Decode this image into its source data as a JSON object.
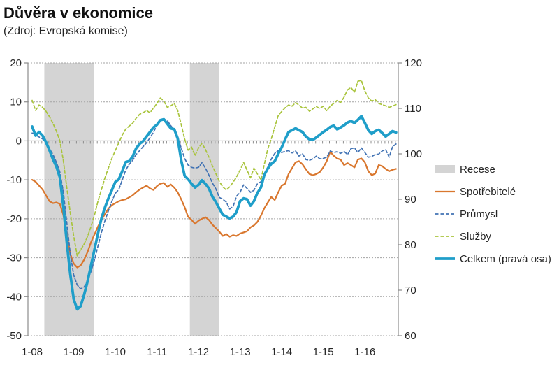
{
  "header": {
    "title": "Důvěra v ekonomice",
    "subtitle": "(Zdroj: Evropská komise)"
  },
  "chart_data": {
    "type": "line",
    "title": "Důvěra v ekonomice",
    "subtitle": "(Zdroj: Evropská komise)",
    "x_start": "1-08",
    "x_end": "10-16",
    "x_tick_labels": [
      "1-08",
      "1-09",
      "1-10",
      "1-11",
      "1-12",
      "1-13",
      "1-14",
      "1-15",
      "1-16"
    ],
    "x_tick_month_indices": [
      0,
      12,
      24,
      36,
      48,
      60,
      72,
      84,
      96
    ],
    "left_axis": {
      "min": -50,
      "max": 20,
      "ticks": [
        20,
        10,
        0,
        -10,
        -20,
        -30,
        -40,
        -50
      ]
    },
    "right_axis": {
      "min": 60,
      "max": 120,
      "ticks": [
        120,
        110,
        100,
        90,
        80,
        70,
        60
      ]
    },
    "grid": "dashed-horizontal",
    "legend_position": "right",
    "colors": {
      "recession": "#D4D4D4",
      "consumer": "#D9772E",
      "industry": "#4273B4",
      "services": "#A9C43C",
      "total": "#1F9EC9",
      "axis": "#8C8C8C",
      "gridline": "#A3A3A3",
      "text": "#262626"
    },
    "recession_bands": [
      {
        "label": "Recese",
        "from": "4-08",
        "to": "6-09",
        "from_index": 3.5,
        "to_index": 17.8
      },
      {
        "label": "Recese",
        "from": "10-11",
        "to": "6-12",
        "from_index": 45.5,
        "to_index": 54
      }
    ],
    "band_legend_label": "Recese",
    "series": [
      {
        "name": "Spotřebitelé",
        "axis": "left",
        "style": "solid",
        "width": 2.2,
        "color": "#D9772E",
        "values": [
          -10,
          -10.5,
          -11.5,
          -12.5,
          -14,
          -15.5,
          -16,
          -15.8,
          -16.2,
          -19,
          -24,
          -29,
          -31.5,
          -32.5,
          -32,
          -30.5,
          -28.5,
          -26,
          -24,
          -22,
          -20.3,
          -18.8,
          -17.4,
          -16.5,
          -16,
          -15.5,
          -15.2,
          -15,
          -14.5,
          -14,
          -13.2,
          -12.5,
          -12,
          -11.5,
          -12.2,
          -12.6,
          -11.6,
          -11,
          -10.8,
          -11.8,
          -11.2,
          -12,
          -13.2,
          -15,
          -17,
          -19.5,
          -20.3,
          -21.3,
          -20.5,
          -20,
          -19.6,
          -20.3,
          -21.5,
          -22.4,
          -23.3,
          -24.4,
          -23.9,
          -24.6,
          -24.2,
          -24.4,
          -23.8,
          -23.5,
          -23.2,
          -22.2,
          -21.7,
          -20.8,
          -19.2,
          -17.3,
          -15.8,
          -14.4,
          -15.2,
          -13.2,
          -11.5,
          -11,
          -8.5,
          -7,
          -5.5,
          -5.2,
          -6,
          -7.3,
          -8.5,
          -8.8,
          -8.5,
          -8,
          -6.8,
          -5.2,
          -2.8,
          -3.8,
          -4.5,
          -4.8,
          -6.2,
          -5.7,
          -6.2,
          -6.8,
          -4.8,
          -4.5,
          -5.5,
          -7.8,
          -8.8,
          -8.4,
          -6.2,
          -6.5,
          -7.2,
          -7.8,
          -7.4,
          -7.2
        ]
      },
      {
        "name": "Průmysl",
        "axis": "left",
        "style": "dashed",
        "width": 1.7,
        "color": "#4273B4",
        "values": [
          2,
          1.5,
          1,
          0.5,
          -0.5,
          -2,
          -3.5,
          -5.5,
          -8,
          -13,
          -21,
          -29,
          -34.5,
          -37,
          -38,
          -37.5,
          -36,
          -33.5,
          -30.5,
          -27,
          -23.5,
          -20.5,
          -18,
          -15.5,
          -13.5,
          -12.5,
          -10,
          -7.5,
          -6,
          -5,
          -3.5,
          -2.5,
          -1.5,
          -0.5,
          0.8,
          2.2,
          4,
          5.3,
          5.6,
          5.2,
          3.9,
          2.8,
          0.9,
          -1.8,
          -4.5,
          -6.2,
          -6.8,
          -7,
          -6.8,
          -5.6,
          -7,
          -8.8,
          -10.8,
          -12.3,
          -14.5,
          -15,
          -15.7,
          -17.5,
          -16.8,
          -14.2,
          -13.2,
          -11.3,
          -12.2,
          -13.2,
          -12.7,
          -11,
          -10.5,
          -8.9,
          -6.7,
          -4.7,
          -3.2,
          -2.5,
          -3,
          -2.7,
          -2.5,
          -3.1,
          -2.6,
          -3.9,
          -3.3,
          -4.8,
          -5,
          -4.6,
          -3.9,
          -4.6,
          -4.5,
          -4.2,
          -2.6,
          -3,
          -2.8,
          -3.2,
          -2.7,
          -3.5,
          -2,
          -1.8,
          -3,
          -1.8,
          -3,
          -4.2,
          -4,
          -3.5,
          -3.4,
          -2.6,
          -2.2,
          -4.2,
          -1.5,
          -0.8
        ]
      },
      {
        "name": "Služby",
        "axis": "left",
        "style": "dashed",
        "width": 1.7,
        "color": "#A9C43C",
        "values": [
          10.4,
          7.8,
          9.2,
          8.6,
          7.6,
          6.2,
          4.5,
          2.5,
          0,
          -5,
          -12,
          -18.5,
          -24.5,
          -29.5,
          -28,
          -26.5,
          -24.5,
          -22,
          -19,
          -15.5,
          -12.5,
          -9.5,
          -7,
          -4.5,
          -2.5,
          -0.5,
          1.5,
          3,
          3.8,
          4.5,
          5.8,
          6.8,
          7.2,
          7.8,
          7.2,
          8.4,
          9.6,
          11,
          10.2,
          8.6,
          9,
          9.6,
          7.8,
          4.2,
          0.5,
          -2.4,
          -1.6,
          -3.8,
          -1.8,
          -0.6,
          -2.2,
          -4.2,
          -6.4,
          -8.4,
          -10.4,
          -11.8,
          -12.6,
          -11.8,
          -10.6,
          -9.2,
          -7.5,
          -5.5,
          -7.5,
          -9.5,
          -7,
          -8.5,
          -10,
          -6,
          -2,
          0.5,
          3.5,
          6.5,
          7.5,
          8.5,
          9.2,
          8.9,
          9.8,
          9.2,
          8.4,
          8.6,
          7.6,
          8.2,
          8.8,
          8.3,
          8.9,
          7.7,
          8.9,
          9.6,
          10.4,
          9.8,
          11.2,
          13.1,
          13.7,
          12.5,
          15.3,
          15.5,
          12.8,
          11,
          10.2,
          10.6,
          9.6,
          9.3,
          9,
          8.6,
          8.9,
          9.3
        ]
      },
      {
        "name": "Celkem (pravá osa)",
        "axis": "right",
        "style": "solid",
        "width": 3.8,
        "color": "#1F9EC9",
        "values": [
          106,
          104,
          104.8,
          104,
          102.6,
          100.8,
          98.8,
          97.2,
          94.8,
          88.5,
          80.5,
          73.5,
          68,
          65.8,
          66.5,
          69,
          72,
          75.5,
          79,
          82.5,
          85.8,
          88.2,
          90.2,
          92,
          93.8,
          94.4,
          96.2,
          98.2,
          98.4,
          99.4,
          101.2,
          102.2,
          102.8,
          103.8,
          104.8,
          105.8,
          106.4,
          107.4,
          107.6,
          106.6,
          105.6,
          105.4,
          103.4,
          98.6,
          95.2,
          94.4,
          93.4,
          92.6,
          93.2,
          94.2,
          93.4,
          92.4,
          90.6,
          89.4,
          88,
          86.6,
          86.2,
          85.8,
          86.2,
          87.2,
          89.6,
          90.2,
          90,
          88.6,
          89.6,
          91.4,
          92.6,
          95.4,
          96.8,
          97.8,
          98.4,
          100,
          101.4,
          103.2,
          104.8,
          105.2,
          105.6,
          105.2,
          104.8,
          103.8,
          103.2,
          103.1,
          103.6,
          104.2,
          104.8,
          105.3,
          105.9,
          106.2,
          105.4,
          105.8,
          106.3,
          106.9,
          107.2,
          106.8,
          107.5,
          108.3,
          106.8,
          105.2,
          104.4,
          105,
          105.3,
          104.6,
          103.8,
          104.4,
          105,
          104.7
        ]
      }
    ]
  }
}
